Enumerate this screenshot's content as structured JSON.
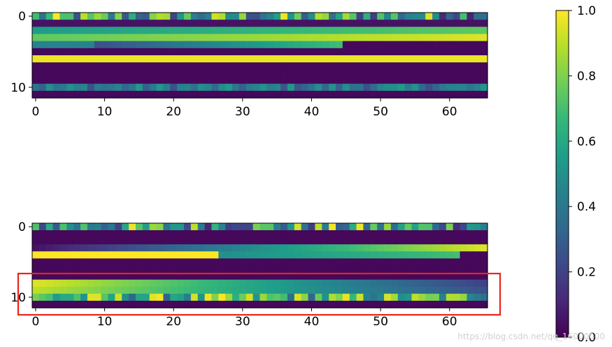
{
  "chart_data": [
    {
      "type": "heatmap",
      "name": "top-heatmap",
      "x_range": [
        -0.5,
        65.5
      ],
      "y_range": [
        -0.5,
        11.5
      ],
      "xticks": [
        0,
        10,
        20,
        30,
        40,
        50,
        60
      ],
      "yticks": [
        0,
        10
      ],
      "rows": 12,
      "cols": 66,
      "row_profiles": [
        {
          "row": 0,
          "kind": "noise",
          "low": 0.1,
          "high": 1.0
        },
        {
          "row": 1,
          "kind": "constant",
          "value": 0.05
        },
        {
          "row": 2,
          "kind": "ramp",
          "from": 0.55,
          "to": 0.75
        },
        {
          "row": 3,
          "kind": "ramp",
          "from": 0.75,
          "to": 0.95
        },
        {
          "row": 4,
          "kind": "split",
          "split_at": 9,
          "before": 0.45,
          "after": 0.25,
          "end_at": 45,
          "end_value": 0.02
        },
        {
          "row": 5,
          "kind": "constant",
          "value": 0.02
        },
        {
          "row": 6,
          "kind": "constant",
          "value": 0.97
        },
        {
          "row": 7,
          "kind": "constant",
          "value": 0.02
        },
        {
          "row": 8,
          "kind": "constant",
          "value": 0.02
        },
        {
          "row": 9,
          "kind": "constant",
          "value": 0.02
        },
        {
          "row": 10,
          "kind": "noise",
          "low": 0.25,
          "high": 0.55
        },
        {
          "row": 11,
          "kind": "constant",
          "value": 0.02
        }
      ]
    },
    {
      "type": "heatmap",
      "name": "bottom-heatmap",
      "x_range": [
        -0.5,
        65.5
      ],
      "y_range": [
        -0.5,
        11.5
      ],
      "xticks": [
        0,
        10,
        20,
        30,
        40,
        50,
        60
      ],
      "yticks": [
        0,
        10
      ],
      "rows": 12,
      "cols": 66,
      "row_profiles": [
        {
          "row": 0,
          "kind": "noise",
          "low": 0.1,
          "high": 1.0
        },
        {
          "row": 1,
          "kind": "constant",
          "value": 0.02
        },
        {
          "row": 2,
          "kind": "constant",
          "value": 0.02
        },
        {
          "row": 3,
          "kind": "ramp",
          "from": 0.05,
          "to": 0.95
        },
        {
          "row": 4,
          "kind": "split",
          "split_at": 27,
          "before": 1.0,
          "after": 0.5,
          "end_at": 62,
          "end_value": 0.02
        },
        {
          "row": 5,
          "kind": "constant",
          "value": 0.02
        },
        {
          "row": 6,
          "kind": "constant",
          "value": 0.02
        },
        {
          "row": 7,
          "kind": "constant",
          "value": 0.02
        },
        {
          "row": 8,
          "kind": "ramp",
          "from": 0.95,
          "to": 0.2
        },
        {
          "row": 9,
          "kind": "ramp",
          "from": 0.9,
          "to": 0.25
        },
        {
          "row": 10,
          "kind": "noise",
          "low": 0.3,
          "high": 1.0
        },
        {
          "row": 11,
          "kind": "constant",
          "value": 0.02
        }
      ]
    }
  ],
  "colorbar": {
    "min": 0.0,
    "max": 1.0,
    "ticks": [
      "0.0",
      "0.2",
      "0.4",
      "0.6",
      "0.8",
      "1.0"
    ],
    "colormap": "viridis"
  },
  "highlight_box": {
    "color": "#e8241a",
    "plot": "bottom-heatmap",
    "rows": [
      8,
      10
    ]
  },
  "watermark": "https://blog.csdn.net/qq_16000000",
  "colors": {
    "viridis_stops": [
      "#440154",
      "#482878",
      "#3e4989",
      "#31688e",
      "#26828e",
      "#1f9e89",
      "#35b779",
      "#6ece58",
      "#b5de2b",
      "#fde725"
    ]
  }
}
